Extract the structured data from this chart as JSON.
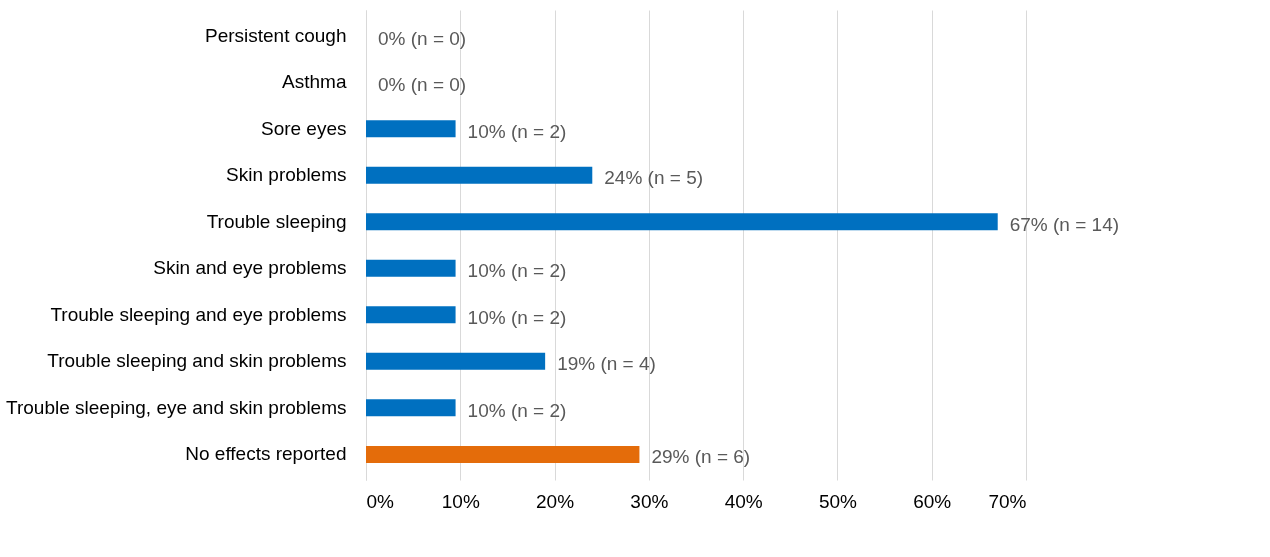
{
  "chart_data": {
    "type": "bar",
    "orientation": "horizontal",
    "categories": [
      "Persistent cough",
      "Asthma",
      "Sore eyes",
      "Skin problems",
      "Trouble sleeping",
      "Skin and eye problems",
      "Trouble sleeping and eye problems",
      "Trouble sleeping and skin problems",
      "Trouble sleeping, eye and skin problems",
      "No effects reported"
    ],
    "values": [
      0,
      0,
      9.5,
      24,
      67,
      9.5,
      9.5,
      19,
      9.5,
      29
    ],
    "colors": [
      "#0070c0",
      "#0070c0",
      "#0070c0",
      "#0070c0",
      "#0070c0",
      "#0070c0",
      "#0070c0",
      "#0070c0",
      "#0070c0",
      "#e46c0a"
    ],
    "value_labels": [
      "0% (n = 0)",
      "0% (n = 0)",
      "10% (n = 2)",
      "24% (n = 5)",
      "67% (n = 14)",
      "10% (n = 2)",
      "10% (n = 2)",
      "19% (n = 4)",
      "10% (n = 2)",
      "29% (n = 6)"
    ],
    "xlim": [
      0,
      70
    ],
    "xticks": [
      {
        "value": 0,
        "label": "0%"
      },
      {
        "value": 10,
        "label": "10%"
      },
      {
        "value": 20,
        "label": "20%"
      },
      {
        "value": 30,
        "label": "30%"
      },
      {
        "value": 40,
        "label": "40%"
      },
      {
        "value": 50,
        "label": "50%"
      },
      {
        "value": 60,
        "label": "60%"
      },
      {
        "value": 70,
        "label": "70%"
      }
    ],
    "grid": "x"
  }
}
